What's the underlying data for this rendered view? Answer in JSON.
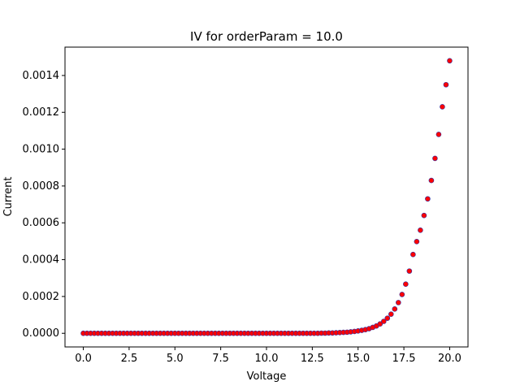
{
  "chart_data": {
    "type": "scatter",
    "title": "IV for orderParam = 10.0",
    "xlabel": "Voltage",
    "ylabel": "Current",
    "xlim": [
      -1.0,
      21.0
    ],
    "ylim": [
      -7.4e-05,
      0.001554
    ],
    "xticks": [
      0.0,
      2.5,
      5.0,
      7.5,
      10.0,
      12.5,
      15.0,
      17.5,
      20.0
    ],
    "xtick_labels": [
      "0.0",
      "2.5",
      "5.0",
      "7.5",
      "10.0",
      "12.5",
      "15.0",
      "17.5",
      "20.0"
    ],
    "yticks": [
      0.0,
      0.0002,
      0.0004,
      0.0006,
      0.0008,
      0.001,
      0.0012,
      0.0014
    ],
    "ytick_labels": [
      "0.0000",
      "0.0002",
      "0.0004",
      "0.0006",
      "0.0008",
      "0.0010",
      "0.0012",
      "0.0014"
    ],
    "grid": false,
    "legend": "none",
    "series": [
      {
        "marker_color": "#ff0000",
        "edge_color": "#3030a0",
        "x": [
          0.0,
          0.2,
          0.4,
          0.6,
          0.8,
          1.0,
          1.2,
          1.4,
          1.6,
          1.8,
          2.0,
          2.2,
          2.4,
          2.6,
          2.8,
          3.0,
          3.2,
          3.4,
          3.6,
          3.8,
          4.0,
          4.2,
          4.4,
          4.6,
          4.8,
          5.0,
          5.2,
          5.4,
          5.6,
          5.8,
          6.0,
          6.2,
          6.4,
          6.6,
          6.8,
          7.0,
          7.2,
          7.4,
          7.6,
          7.8,
          8.0,
          8.2,
          8.4,
          8.6,
          8.8,
          9.0,
          9.2,
          9.4,
          9.6,
          9.8,
          10.0,
          10.2,
          10.4,
          10.6,
          10.8,
          11.0,
          11.2,
          11.4,
          11.6,
          11.8,
          12.0,
          12.2,
          12.4,
          12.6,
          12.8,
          13.0,
          13.2,
          13.4,
          13.6,
          13.8,
          14.0,
          14.2,
          14.4,
          14.6,
          14.8,
          15.0,
          15.2,
          15.4,
          15.6,
          15.8,
          16.0,
          16.2,
          16.4,
          16.6,
          16.8,
          17.0,
          17.2,
          17.4,
          17.6,
          17.8,
          18.0,
          18.2,
          18.4,
          18.6,
          18.8,
          19.0,
          19.2,
          19.4,
          19.6,
          19.8,
          20.0
        ],
        "y": [
          0.0,
          0.0,
          0.0,
          0.0,
          0.0,
          0.0,
          0.0,
          0.0,
          0.0,
          0.0,
          0.0,
          0.0,
          0.0,
          0.0,
          0.0,
          0.0,
          0.0,
          0.0,
          0.0,
          0.0,
          0.0,
          0.0,
          0.0,
          0.0,
          0.0,
          0.0,
          0.0,
          0.0,
          0.0,
          0.0,
          0.0,
          0.0,
          0.0,
          0.0,
          0.0,
          0.0,
          0.0,
          0.0,
          0.0,
          0.0,
          0.0,
          0.0,
          0.0,
          0.0,
          0.0,
          0.0,
          0.0,
          0.0,
          0.0,
          0.0,
          0.0,
          0.0,
          0.0,
          0.0,
          0.0,
          0.0,
          0.0,
          0.0,
          0.0,
          0.0,
          0.0,
          0.0,
          0.0,
          0.0,
          0.0,
          1e-06,
          1e-06,
          2e-06,
          2e-06,
          3e-06,
          4e-06,
          5e-06,
          6e-06,
          8e-06,
          1e-05,
          1.3e-05,
          1.6e-05,
          2e-05,
          2.5e-05,
          3.2e-05,
          4e-05,
          5.1e-05,
          6.5e-05,
          8.2e-05,
          0.000104,
          0.000132,
          0.000167,
          0.000211,
          0.000267,
          0.000338,
          0.000428,
          0.000498,
          0.00056,
          0.00064,
          0.00073,
          0.00083,
          0.00095,
          0.00108,
          0.00123,
          0.00135,
          0.00148
        ]
      }
    ]
  }
}
